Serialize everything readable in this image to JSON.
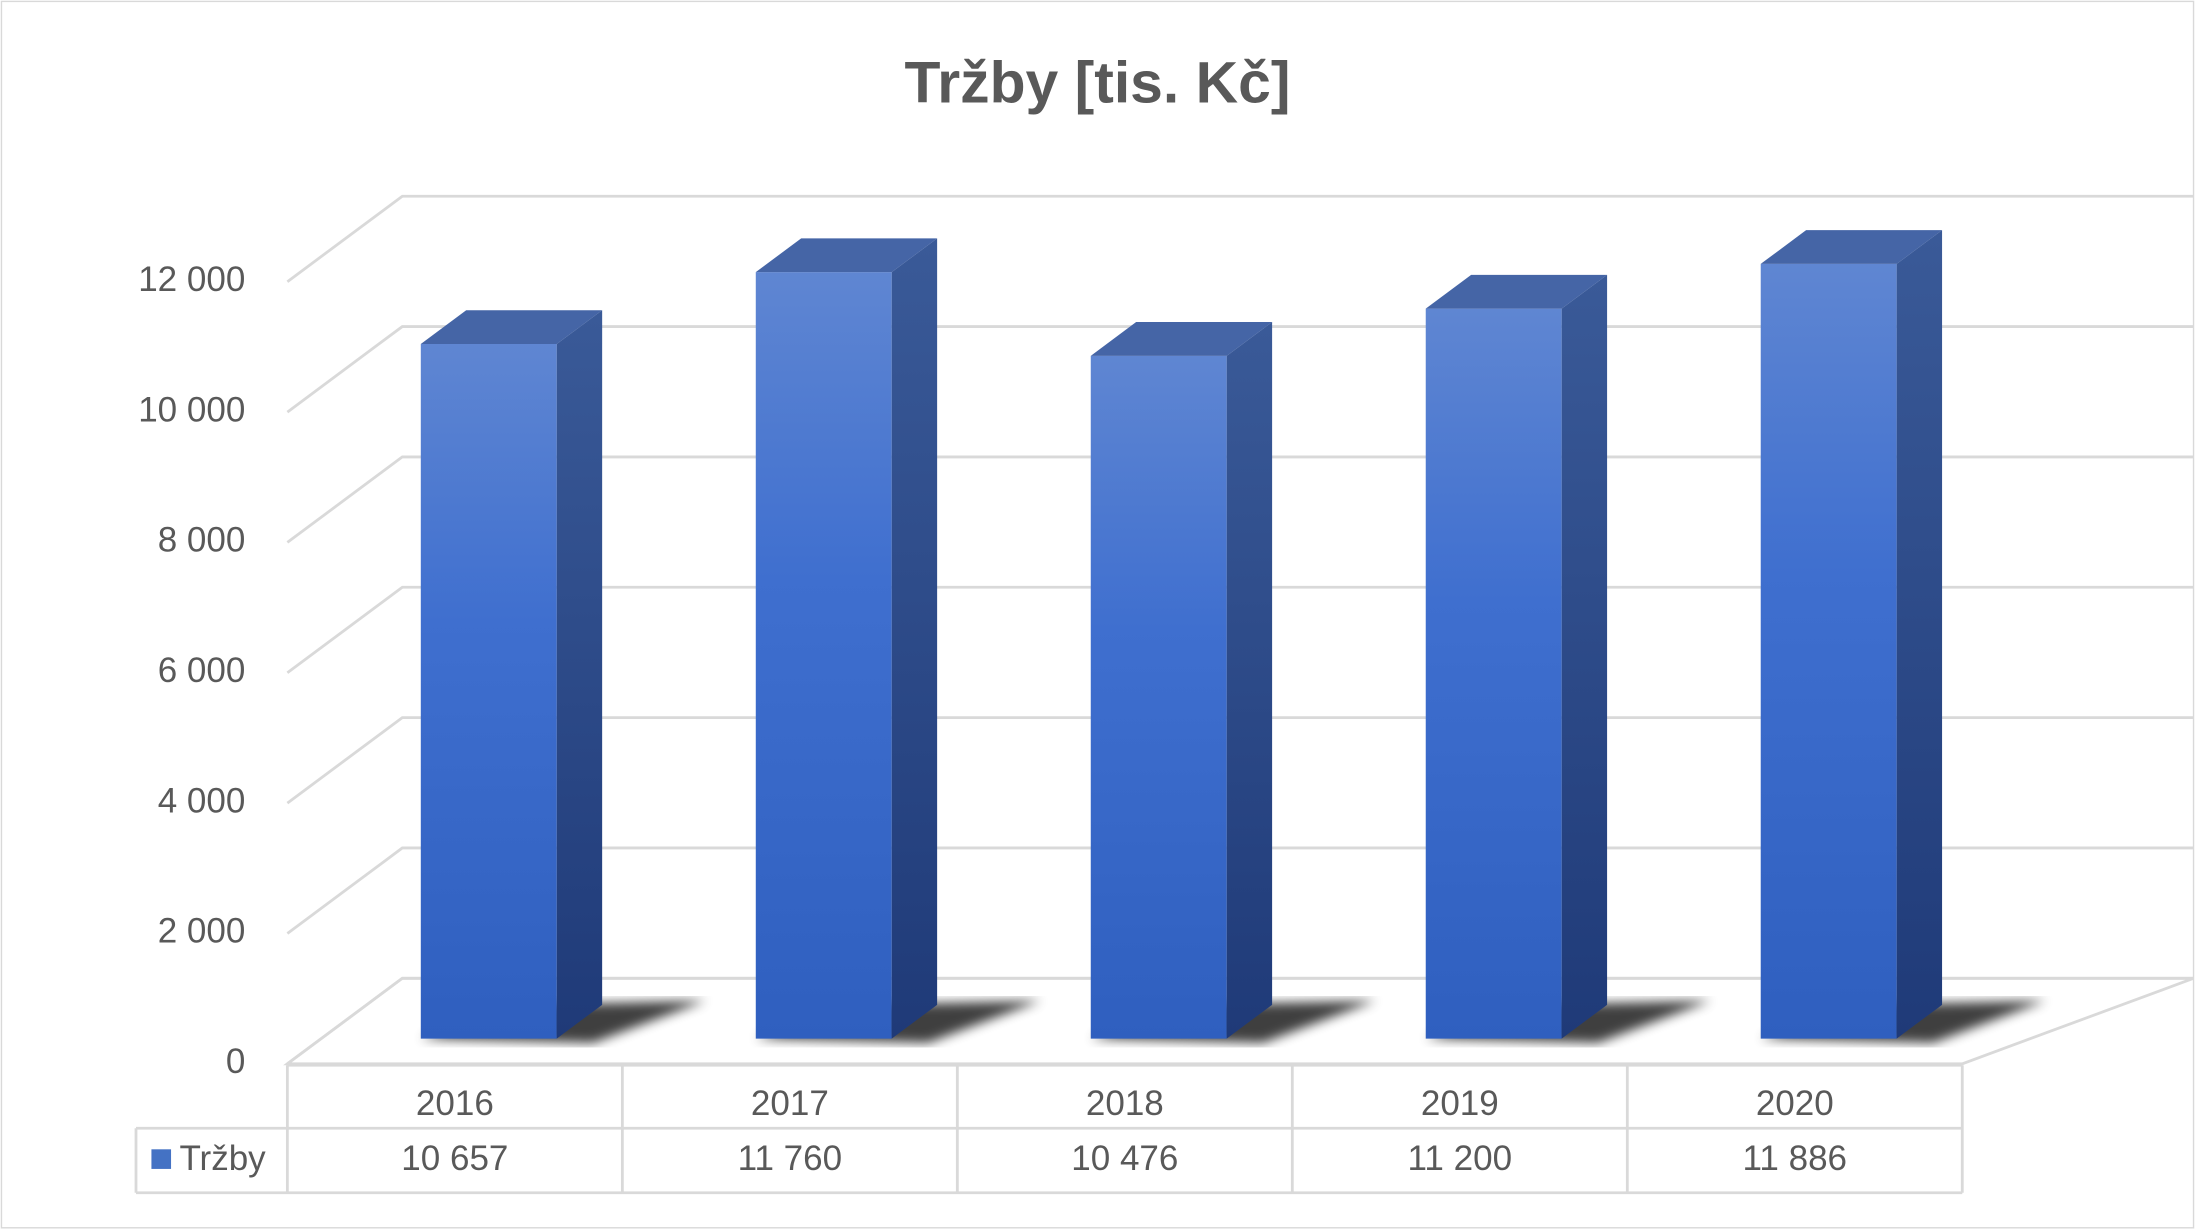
{
  "chart_data": {
    "type": "bar3d",
    "title": "Tržby [tis. Kč]",
    "categories": [
      "2016",
      "2017",
      "2018",
      "2019",
      "2020"
    ],
    "series": [
      {
        "name": "Tržby",
        "color": "#4472c4",
        "values": [
          10657,
          11760,
          10476,
          11200,
          11886
        ],
        "value_labels": [
          "10 657",
          "11 760",
          "10 476",
          "11 200",
          "11 886"
        ]
      }
    ],
    "ylim": [
      0,
      12000
    ],
    "yticks": [
      0,
      {
        "value": 2000,
        "label": "2 000"
      },
      {
        "value": 4000,
        "label": "4 000"
      },
      {
        "value": 6000,
        "label": "6 000"
      },
      {
        "value": 8000,
        "label": "8 000"
      },
      {
        "value": 10000,
        "label": "10 000"
      },
      {
        "value": 12000,
        "label": "12 000"
      }
    ],
    "grid": true,
    "data_table": true
  }
}
